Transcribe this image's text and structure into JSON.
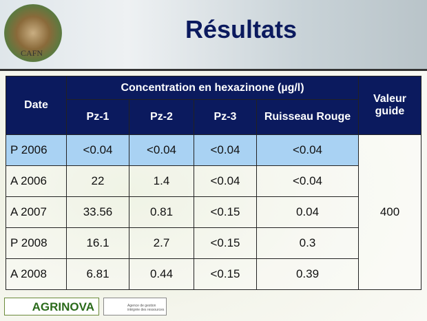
{
  "header": {
    "title": "Résultats",
    "logo_caption": "CAFN"
  },
  "table": {
    "date_header": "Date",
    "group_header": "Concentration en hexazinone (µg/l)",
    "guide_header": "Valeur guide",
    "columns": [
      "Pz-1",
      "Pz-2",
      "Pz-3",
      "Ruisseau Rouge"
    ],
    "rows": [
      [
        "P 2006",
        "<0.04",
        "<0.04",
        "<0.04",
        "<0.04"
      ],
      [
        "A 2006",
        "22",
        "1.4",
        "<0.04",
        "<0.04"
      ],
      [
        "A 2007",
        "33.56",
        "0.81",
        "<0.15",
        "0.04"
      ],
      [
        "P 2008",
        "16.1",
        "2.7",
        "<0.15",
        "0.3"
      ],
      [
        "A 2008",
        "6.81",
        "0.44",
        "<0.15",
        "0.39"
      ]
    ],
    "guide_value": "400"
  },
  "footer": {
    "logo1": "AGRINOVA",
    "logo2": "Agence de gestion intégrée des ressources"
  }
}
